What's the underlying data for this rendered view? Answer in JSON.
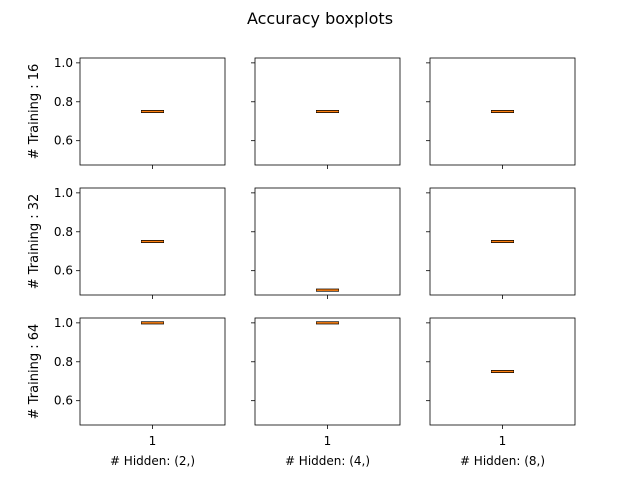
{
  "chart_data": {
    "type": "boxplot",
    "title": "Accuracy boxplots",
    "rows": [
      "# Training : 16",
      "# Training : 32",
      "# Training : 64"
    ],
    "cols": [
      "# Hidden: (2,)",
      "# Hidden: (4,)",
      "# Hidden: (8,)"
    ],
    "x_categories": [
      "1"
    ],
    "ylim": [
      0.475,
      1.025
    ],
    "y_ticks": [
      0.6,
      0.8,
      1.0
    ],
    "y_tick_labels": [
      "0.6",
      "0.8",
      "1.0"
    ],
    "grid": false,
    "sharex": true,
    "sharey": true,
    "colors": {
      "box": "#000000",
      "median": "#ff7f0e"
    },
    "panels": [
      [
        {
          "q1": 0.75,
          "median": 0.75,
          "q3": 0.75,
          "whisker_low": 0.75,
          "whisker_high": 0.75
        },
        {
          "q1": 0.75,
          "median": 0.75,
          "q3": 0.75,
          "whisker_low": 0.75,
          "whisker_high": 0.75
        },
        {
          "q1": 0.75,
          "median": 0.75,
          "q3": 0.75,
          "whisker_low": 0.75,
          "whisker_high": 0.75
        }
      ],
      [
        {
          "q1": 0.75,
          "median": 0.75,
          "q3": 0.75,
          "whisker_low": 0.75,
          "whisker_high": 0.75
        },
        {
          "q1": 0.5,
          "median": 0.5,
          "q3": 0.5,
          "whisker_low": 0.5,
          "whisker_high": 0.5
        },
        {
          "q1": 0.75,
          "median": 0.75,
          "q3": 0.75,
          "whisker_low": 0.75,
          "whisker_high": 0.75
        }
      ],
      [
        {
          "q1": 1.0,
          "median": 1.0,
          "q3": 1.0,
          "whisker_low": 1.0,
          "whisker_high": 1.0
        },
        {
          "q1": 1.0,
          "median": 1.0,
          "q3": 1.0,
          "whisker_low": 1.0,
          "whisker_high": 1.0
        },
        {
          "q1": 0.75,
          "median": 0.75,
          "q3": 0.75,
          "whisker_low": 0.75,
          "whisker_high": 0.75
        }
      ]
    ]
  }
}
